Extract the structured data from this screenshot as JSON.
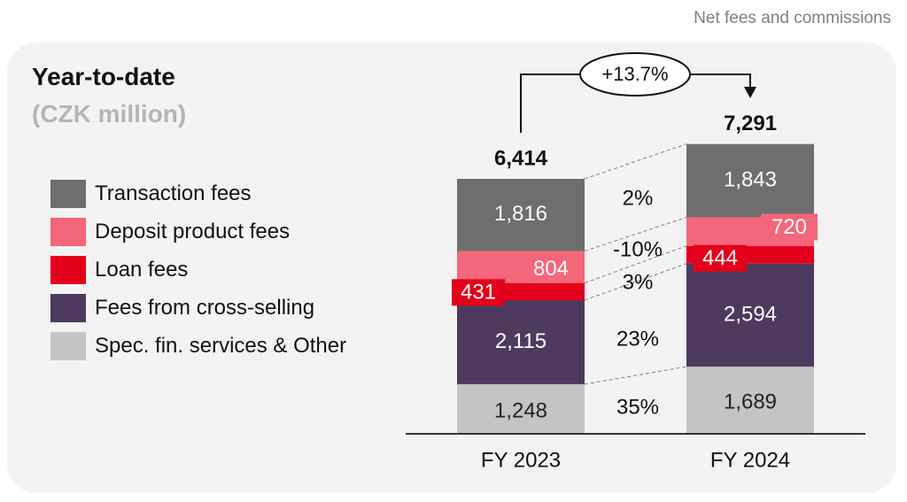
{
  "header": {
    "title": "Net fees and commissions"
  },
  "panel": {
    "title": "Year-to-date",
    "subtitle": "(CZK million)"
  },
  "colors": {
    "transaction": "#6e6e6e",
    "deposit": "#f4667a",
    "loan": "#e3001b",
    "cross_selling": "#4e3a5e",
    "other": "#c4c4c4",
    "panel_background": "#f3f3f3"
  },
  "chart_data": {
    "type": "bar",
    "stacked": true,
    "categories": [
      "FY 2023",
      "FY 2024"
    ],
    "totals": [
      "6,414",
      "7,291"
    ],
    "growth_label": "+13.7%",
    "series": [
      {
        "name": "Spec. fin. services & Other",
        "values": [
          1248,
          1689
        ],
        "labels": [
          "1,248",
          "1,689"
        ],
        "change": "35%",
        "color": "#c4c4c4"
      },
      {
        "name": "Fees from cross-selling",
        "values": [
          2115,
          2594
        ],
        "labels": [
          "2,115",
          "2,594"
        ],
        "change": "23%",
        "color": "#4e3a5e"
      },
      {
        "name": "Loan fees",
        "values": [
          431,
          444
        ],
        "labels": [
          "431",
          "444"
        ],
        "change": "3%",
        "color": "#e3001b"
      },
      {
        "name": "Deposit product fees",
        "values": [
          804,
          720
        ],
        "labels": [
          "804",
          "720"
        ],
        "change": "-10%",
        "color": "#f4667a"
      },
      {
        "name": "Transaction fees",
        "values": [
          1816,
          1843
        ],
        "labels": [
          "1,816",
          "1,843"
        ],
        "change": "2%",
        "color": "#6e6e6e"
      }
    ],
    "legend": [
      "Transaction fees",
      "Deposit product fees",
      "Loan fees",
      "Fees from cross-selling",
      "Spec. fin. services & Other"
    ],
    "legend_placement": "left",
    "grid": false
  }
}
